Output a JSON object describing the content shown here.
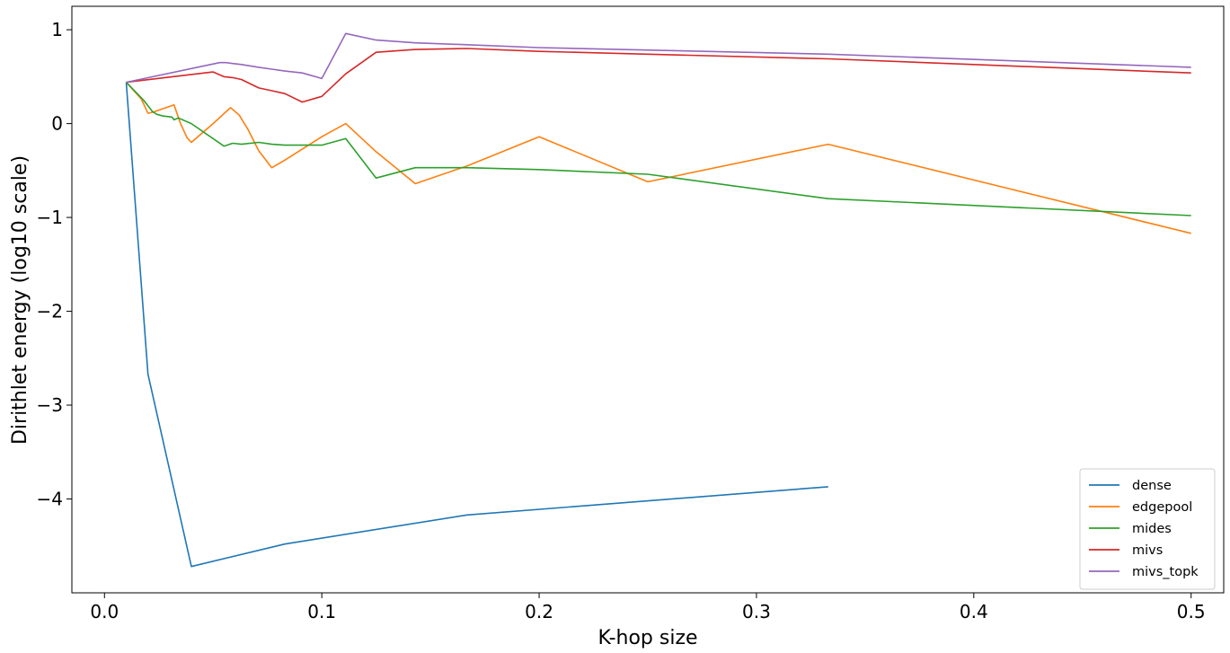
{
  "chart_data": {
    "type": "line",
    "xlabel": "K-hop size",
    "ylabel": "Dirithlet energy (log10 scale)",
    "xlim": [
      -0.015,
      0.515
    ],
    "ylim": [
      -5.0,
      1.25
    ],
    "xticks": [
      0.0,
      0.1,
      0.2,
      0.3,
      0.4,
      0.5
    ],
    "xtick_labels": [
      "0.0",
      "0.1",
      "0.2",
      "0.3",
      "0.4",
      "0.5"
    ],
    "yticks": [
      -4,
      -3,
      -2,
      -1,
      0,
      1
    ],
    "ytick_labels": [
      "−4",
      "−3",
      "−2",
      "−1",
      "0",
      "1"
    ],
    "grid": false,
    "legend_position": "bottom-right",
    "series": [
      {
        "name": "dense",
        "color": "#1f77b4",
        "x": [
          0.01,
          0.02,
          0.04,
          0.083,
          0.167,
          0.333
        ],
        "y": [
          0.44,
          -2.67,
          -4.72,
          -4.48,
          -4.17,
          -3.87
        ]
      },
      {
        "name": "edgepool",
        "color": "#ff7f0e",
        "x": [
          0.01,
          0.017,
          0.02,
          0.022,
          0.032,
          0.035,
          0.038,
          0.04,
          0.05,
          0.058,
          0.062,
          0.066,
          0.071,
          0.077,
          0.083,
          0.1,
          0.111,
          0.125,
          0.143,
          0.167,
          0.2,
          0.25,
          0.333,
          0.5
        ],
        "y": [
          0.44,
          0.26,
          0.11,
          0.12,
          0.2,
          0.0,
          -0.15,
          -0.2,
          0.0,
          0.17,
          0.09,
          -0.06,
          -0.29,
          -0.47,
          -0.39,
          -0.14,
          0.0,
          -0.3,
          -0.64,
          -0.45,
          -0.14,
          -0.62,
          -0.22,
          -1.17
        ]
      },
      {
        "name": "mides",
        "color": "#2ca02c",
        "x": [
          0.01,
          0.018,
          0.022,
          0.024,
          0.027,
          0.031,
          0.032,
          0.034,
          0.04,
          0.055,
          0.059,
          0.063,
          0.071,
          0.077,
          0.083,
          0.091,
          0.1,
          0.111,
          0.125,
          0.143,
          0.167,
          0.2,
          0.25,
          0.333,
          0.5
        ],
        "y": [
          0.44,
          0.25,
          0.13,
          0.1,
          0.08,
          0.07,
          0.04,
          0.06,
          0.0,
          -0.24,
          -0.21,
          -0.22,
          -0.2,
          -0.22,
          -0.23,
          -0.23,
          -0.23,
          -0.16,
          -0.58,
          -0.47,
          -0.47,
          -0.49,
          -0.54,
          -0.8,
          -0.98
        ]
      },
      {
        "name": "mivs",
        "color": "#d62728",
        "x": [
          0.01,
          0.05,
          0.055,
          0.059,
          0.063,
          0.071,
          0.077,
          0.083,
          0.091,
          0.1,
          0.111,
          0.125,
          0.143,
          0.167,
          0.2,
          0.333,
          0.5
        ],
        "y": [
          0.44,
          0.55,
          0.5,
          0.49,
          0.47,
          0.38,
          0.35,
          0.32,
          0.23,
          0.29,
          0.53,
          0.76,
          0.79,
          0.8,
          0.77,
          0.69,
          0.54
        ]
      },
      {
        "name": "mivs_topk",
        "color": "#9467bd",
        "x": [
          0.01,
          0.053,
          0.056,
          0.059,
          0.063,
          0.071,
          0.077,
          0.083,
          0.091,
          0.1,
          0.111,
          0.125,
          0.143,
          0.167,
          0.2,
          0.333,
          0.5
        ],
        "y": [
          0.44,
          0.65,
          0.65,
          0.64,
          0.63,
          0.6,
          0.58,
          0.56,
          0.54,
          0.48,
          0.96,
          0.89,
          0.86,
          0.84,
          0.81,
          0.74,
          0.6
        ]
      }
    ]
  }
}
